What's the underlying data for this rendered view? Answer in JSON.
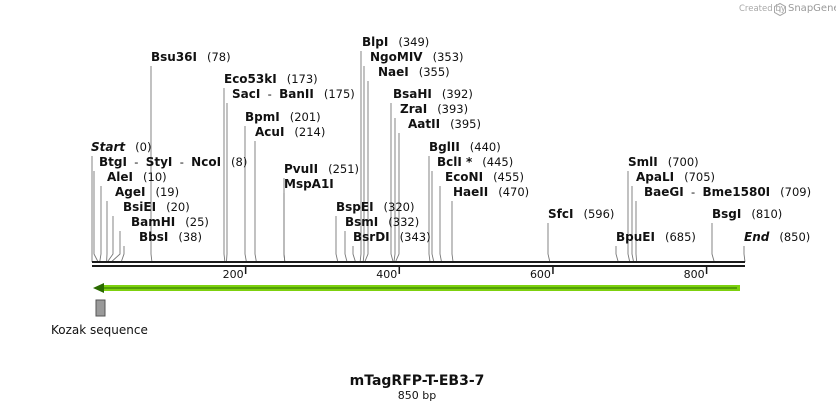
{
  "credit": {
    "prefix": "Created by",
    "brand": "SnapGene"
  },
  "sequence": {
    "name": "mTagRFP-T-EB3-7",
    "length_label": "850 bp",
    "length": 850
  },
  "ruler": {
    "ticks": [
      200,
      400,
      600,
      800
    ]
  },
  "sites": [
    {
      "id": "bsu36i",
      "parts": [
        "Bsu36I"
      ],
      "pos": "(78)",
      "bp": 78
    },
    {
      "id": "blpi",
      "parts": [
        "BlpI"
      ],
      "pos": "(349)",
      "bp": 349
    },
    {
      "id": "ngomiv",
      "parts": [
        "NgoMIV"
      ],
      "pos": "(353)",
      "bp": 353
    },
    {
      "id": "naei",
      "parts": [
        "NaeI"
      ],
      "pos": "(355)",
      "bp": 355
    },
    {
      "id": "eco53ki",
      "parts": [
        "Eco53kI"
      ],
      "pos": "(173)",
      "bp": 173
    },
    {
      "id": "saci-banii",
      "parts": [
        "SacI",
        "BanII"
      ],
      "pos": "(175)",
      "bp": 175
    },
    {
      "id": "bsahi",
      "parts": [
        "BsaHI"
      ],
      "pos": "(392)",
      "bp": 392
    },
    {
      "id": "zrai",
      "parts": [
        "ZraI"
      ],
      "pos": "(393)",
      "bp": 393
    },
    {
      "id": "aatii",
      "parts": [
        "AatII"
      ],
      "pos": "(395)",
      "bp": 395
    },
    {
      "id": "bpmi",
      "parts": [
        "BpmI"
      ],
      "pos": "(201)",
      "bp": 201
    },
    {
      "id": "acui",
      "parts": [
        "AcuI"
      ],
      "pos": "(214)",
      "bp": 214
    },
    {
      "id": "start",
      "parts": [
        "Start"
      ],
      "pos": "(0)",
      "bp": 0,
      "italic": true
    },
    {
      "id": "bglii",
      "parts": [
        "BglII"
      ],
      "pos": "(440)",
      "bp": 440
    },
    {
      "id": "btgi-styi-ncoi",
      "parts": [
        "BtgI",
        "StyI",
        "NcoI"
      ],
      "pos": "(8)",
      "bp": 8
    },
    {
      "id": "bcli",
      "parts": [
        "BclI *"
      ],
      "pos": "(445)",
      "bp": 445
    },
    {
      "id": "smli",
      "parts": [
        "SmlI"
      ],
      "pos": "(700)",
      "bp": 700
    },
    {
      "id": "pvuii",
      "parts": [
        "PvuII"
      ],
      "pos": "(251)",
      "bp": 251
    },
    {
      "id": "alei",
      "parts": [
        "AleI"
      ],
      "pos": "(10)",
      "bp": 10
    },
    {
      "id": "econi",
      "parts": [
        "EcoNI"
      ],
      "pos": "(455)",
      "bp": 455
    },
    {
      "id": "apali",
      "parts": [
        "ApaLI"
      ],
      "pos": "(705)",
      "bp": 705
    },
    {
      "id": "mspa1i",
      "parts": [
        "MspA1I"
      ],
      "pos": "",
      "bp": 251
    },
    {
      "id": "agei",
      "parts": [
        "AgeI"
      ],
      "pos": "(19)",
      "bp": 19
    },
    {
      "id": "haeii",
      "parts": [
        "HaeII"
      ],
      "pos": "(470)",
      "bp": 470
    },
    {
      "id": "baegi-bme1580i",
      "parts": [
        "BaeGI",
        "Bme1580I"
      ],
      "pos": "(709)",
      "bp": 709
    },
    {
      "id": "bsiei",
      "parts": [
        "BsiEI"
      ],
      "pos": "(20)",
      "bp": 20
    },
    {
      "id": "bspei",
      "parts": [
        "BspEI"
      ],
      "pos": "(320)",
      "bp": 320
    },
    {
      "id": "sfci",
      "parts": [
        "SfcI"
      ],
      "pos": "(596)",
      "bp": 596
    },
    {
      "id": "bsgi",
      "parts": [
        "BsgI"
      ],
      "pos": "(810)",
      "bp": 810
    },
    {
      "id": "bamhi",
      "parts": [
        "BamHI"
      ],
      "pos": "(25)",
      "bp": 25
    },
    {
      "id": "bsmi",
      "parts": [
        "BsmI"
      ],
      "pos": "(332)",
      "bp": 332
    },
    {
      "id": "bbsi",
      "parts": [
        "BbsI"
      ],
      "pos": "(38)",
      "bp": 38
    },
    {
      "id": "bsrdi",
      "parts": [
        "BsrDI"
      ],
      "pos": "(343)",
      "bp": 343
    },
    {
      "id": "bpuei",
      "parts": [
        "BpuEI"
      ],
      "pos": "(685)",
      "bp": 685
    },
    {
      "id": "end",
      "parts": [
        "End"
      ],
      "pos": "(850)",
      "bp": 850,
      "italic": true
    }
  ],
  "features": [
    {
      "id": "orf",
      "label": "",
      "start_bp": 0,
      "end_bp": 850,
      "direction": "reverse",
      "color": "#7dd10e"
    },
    {
      "id": "kozak",
      "label": "Kozak sequence",
      "start_bp": 0,
      "end_bp": 9,
      "color": "#999999"
    }
  ],
  "colors": {
    "backbone": "#1a1a1a",
    "leader": "#777777",
    "orf_arrow": "#7dd10e",
    "kozak_box": "#999999",
    "text": "#111111"
  }
}
